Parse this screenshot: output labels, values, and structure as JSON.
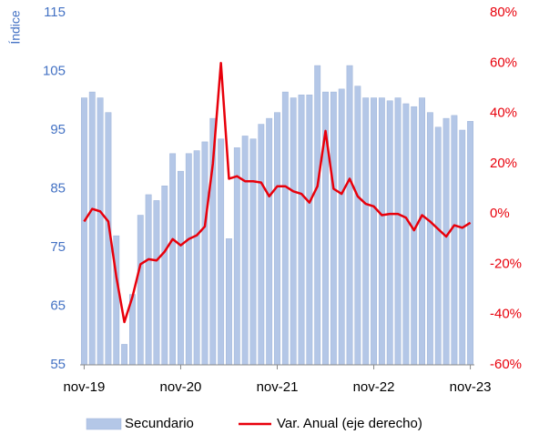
{
  "chart_data": {
    "type": "bar-line",
    "y_label": "Índice",
    "categories": [
      "nov-19",
      null,
      null,
      null,
      null,
      null,
      null,
      null,
      null,
      null,
      null,
      null,
      "nov-20",
      null,
      null,
      null,
      null,
      null,
      null,
      null,
      null,
      null,
      null,
      null,
      "nov-21",
      null,
      null,
      null,
      null,
      null,
      null,
      null,
      null,
      null,
      null,
      null,
      "nov-22",
      null,
      null,
      null,
      null,
      null,
      null,
      null,
      null,
      null,
      null,
      null,
      "nov-23"
    ],
    "series": [
      {
        "name": "Secundario",
        "type": "bar",
        "color": "#b4c7e7",
        "axis": "y",
        "values": [
          100.5,
          101.5,
          100.5,
          98,
          77,
          58.5,
          67,
          80.5,
          84,
          83,
          85.5,
          91,
          88,
          91,
          91.5,
          93,
          97,
          93.5,
          76.5,
          92,
          94,
          93.5,
          96,
          97,
          98,
          101.5,
          100.5,
          101,
          101,
          106,
          101.5,
          101.5,
          102,
          106,
          102.5,
          100.5,
          100.5,
          100.5,
          100,
          100.5,
          99.5,
          99,
          100.5,
          98,
          95.5,
          97,
          97.5,
          95,
          96.5
        ]
      },
      {
        "name": "Var. Anual (eje derecho)",
        "type": "line",
        "color": "#e8000b",
        "axis": "y2",
        "values": [
          -3,
          2,
          1,
          -3,
          -25,
          -43,
          -33,
          -20,
          -18,
          -18.5,
          -15,
          -10,
          -12.5,
          -10,
          -8.5,
          -5,
          20,
          60,
          14,
          15,
          13,
          13,
          12.5,
          7,
          11,
          11,
          9,
          8,
          4.5,
          11,
          33,
          10,
          8,
          14,
          7,
          4,
          3,
          -0.5,
          0,
          0,
          -1.5,
          -6.5,
          -0.5,
          -3,
          -6,
          -9,
          -4.5,
          -5.5,
          -3.5
        ]
      }
    ],
    "ylim": [
      55,
      115
    ],
    "yticks": [
      55,
      65,
      75,
      85,
      95,
      105,
      115
    ],
    "y2lim": [
      -60,
      80
    ],
    "y2ticks": [
      {
        "value": -60,
        "label": "-60%"
      },
      {
        "value": -40,
        "label": "-40%"
      },
      {
        "value": -20,
        "label": "-20%"
      },
      {
        "value": 0,
        "label": "0%"
      },
      {
        "value": 20,
        "label": "20%"
      },
      {
        "value": 40,
        "label": "40%"
      },
      {
        "value": 60,
        "label": "60%"
      },
      {
        "value": 80,
        "label": "80%"
      }
    ],
    "legend": "bottom"
  }
}
